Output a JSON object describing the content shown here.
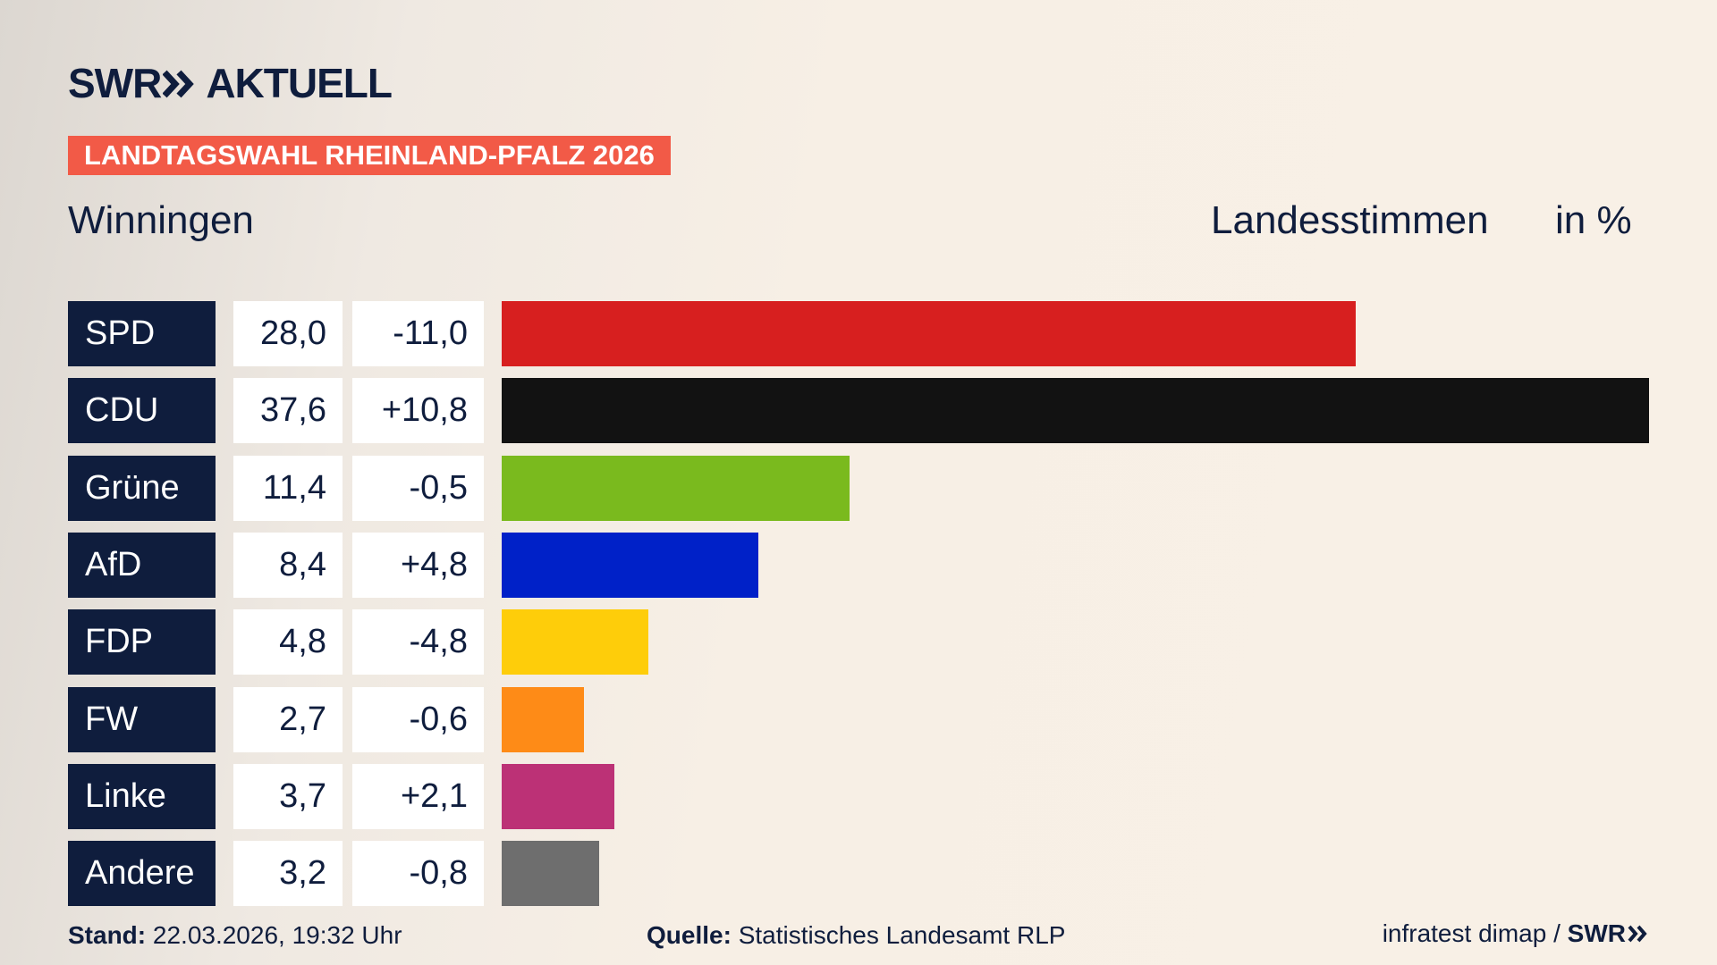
{
  "brand": {
    "logo": "SWR",
    "title": "AKTUELL"
  },
  "banner": "LANDTAGSWAHL RHEINLAND-PFALZ 2026",
  "chart_data": {
    "type": "bar",
    "orientation": "horizontal",
    "title": "Winningen",
    "subtitle": "Landesstimmen",
    "unit": "in %",
    "categories": [
      "SPD",
      "CDU",
      "Grüne",
      "AfD",
      "FDP",
      "FW",
      "Linke",
      "Andere"
    ],
    "values": [
      28.0,
      37.6,
      11.4,
      8.4,
      4.8,
      2.7,
      3.7,
      3.2
    ],
    "value_labels": [
      "28,0",
      "37,6",
      "11,4",
      "8,4",
      "4,8",
      "2,7",
      "3,7",
      "3,2"
    ],
    "changes": [
      -11.0,
      10.8,
      -0.5,
      4.8,
      -4.8,
      -0.6,
      2.1,
      -0.8
    ],
    "change_labels": [
      "-11,0",
      "+10,8",
      "-0,5",
      "+4,8",
      "-4,8",
      "-0,6",
      "+2,1",
      "-0,8"
    ],
    "colors": [
      "#d71f1f",
      "#121212",
      "#7aba1e",
      "#0021c8",
      "#fecd0a",
      "#fe8b17",
      "#bc3176",
      "#6e6e6e"
    ]
  },
  "footer": {
    "stand_label": "Stand:",
    "stand": "22.03.2026, 19:32 Uhr",
    "source_label": "Quelle:",
    "source": "Statistisches Landesamt RLP",
    "credit": "infratest dimap",
    "separator": "/",
    "credit_logo": "SWR"
  }
}
